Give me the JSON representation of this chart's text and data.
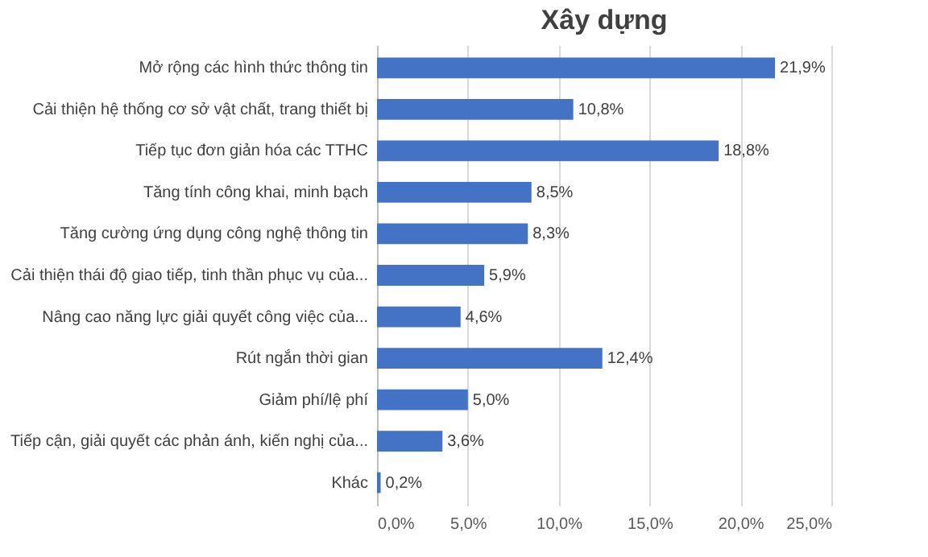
{
  "chart_data": {
    "type": "bar",
    "title": "Xây dựng",
    "orientation": "horizontal",
    "categories": [
      "Mở rộng các hình thức thông tin",
      "Cải thiện hệ thống cơ sở vật chất, trang thiết bị",
      "Tiếp tục đơn giản hóa các TTHC",
      "Tăng tính công khai, minh bạch",
      "Tăng cường ứng dụng công nghệ thông tin",
      "Cải thiện thái độ giao tiếp, tinh thần phục vụ của...",
      "Nâng cao năng lực giải quyết công việc của...",
      "Rút ngắn thời gian",
      "Giảm phí/lệ phí",
      "Tiếp cận, giải quyết các phản ánh, kiến nghị của...",
      "Khác"
    ],
    "values": [
      21.9,
      10.8,
      18.8,
      8.5,
      8.3,
      5.9,
      4.6,
      12.4,
      5.0,
      3.6,
      0.2
    ],
    "value_labels": [
      "21,9%",
      "10,8%",
      "18,8%",
      "8,5%",
      "8,3%",
      "5,9%",
      "4,6%",
      "12,4%",
      "5,0%",
      "3,6%",
      "0,2%"
    ],
    "color": "#4472c4",
    "xlim": [
      0,
      25
    ],
    "xticks": [
      {
        "value": 0,
        "label": "0,0%"
      },
      {
        "value": 5,
        "label": "5,0%"
      },
      {
        "value": 10,
        "label": "10,0%"
      },
      {
        "value": 15,
        "label": "15,0%"
      },
      {
        "value": 20,
        "label": "20,0%"
      },
      {
        "value": 25,
        "label": "25,0%"
      }
    ],
    "grid": "x"
  }
}
